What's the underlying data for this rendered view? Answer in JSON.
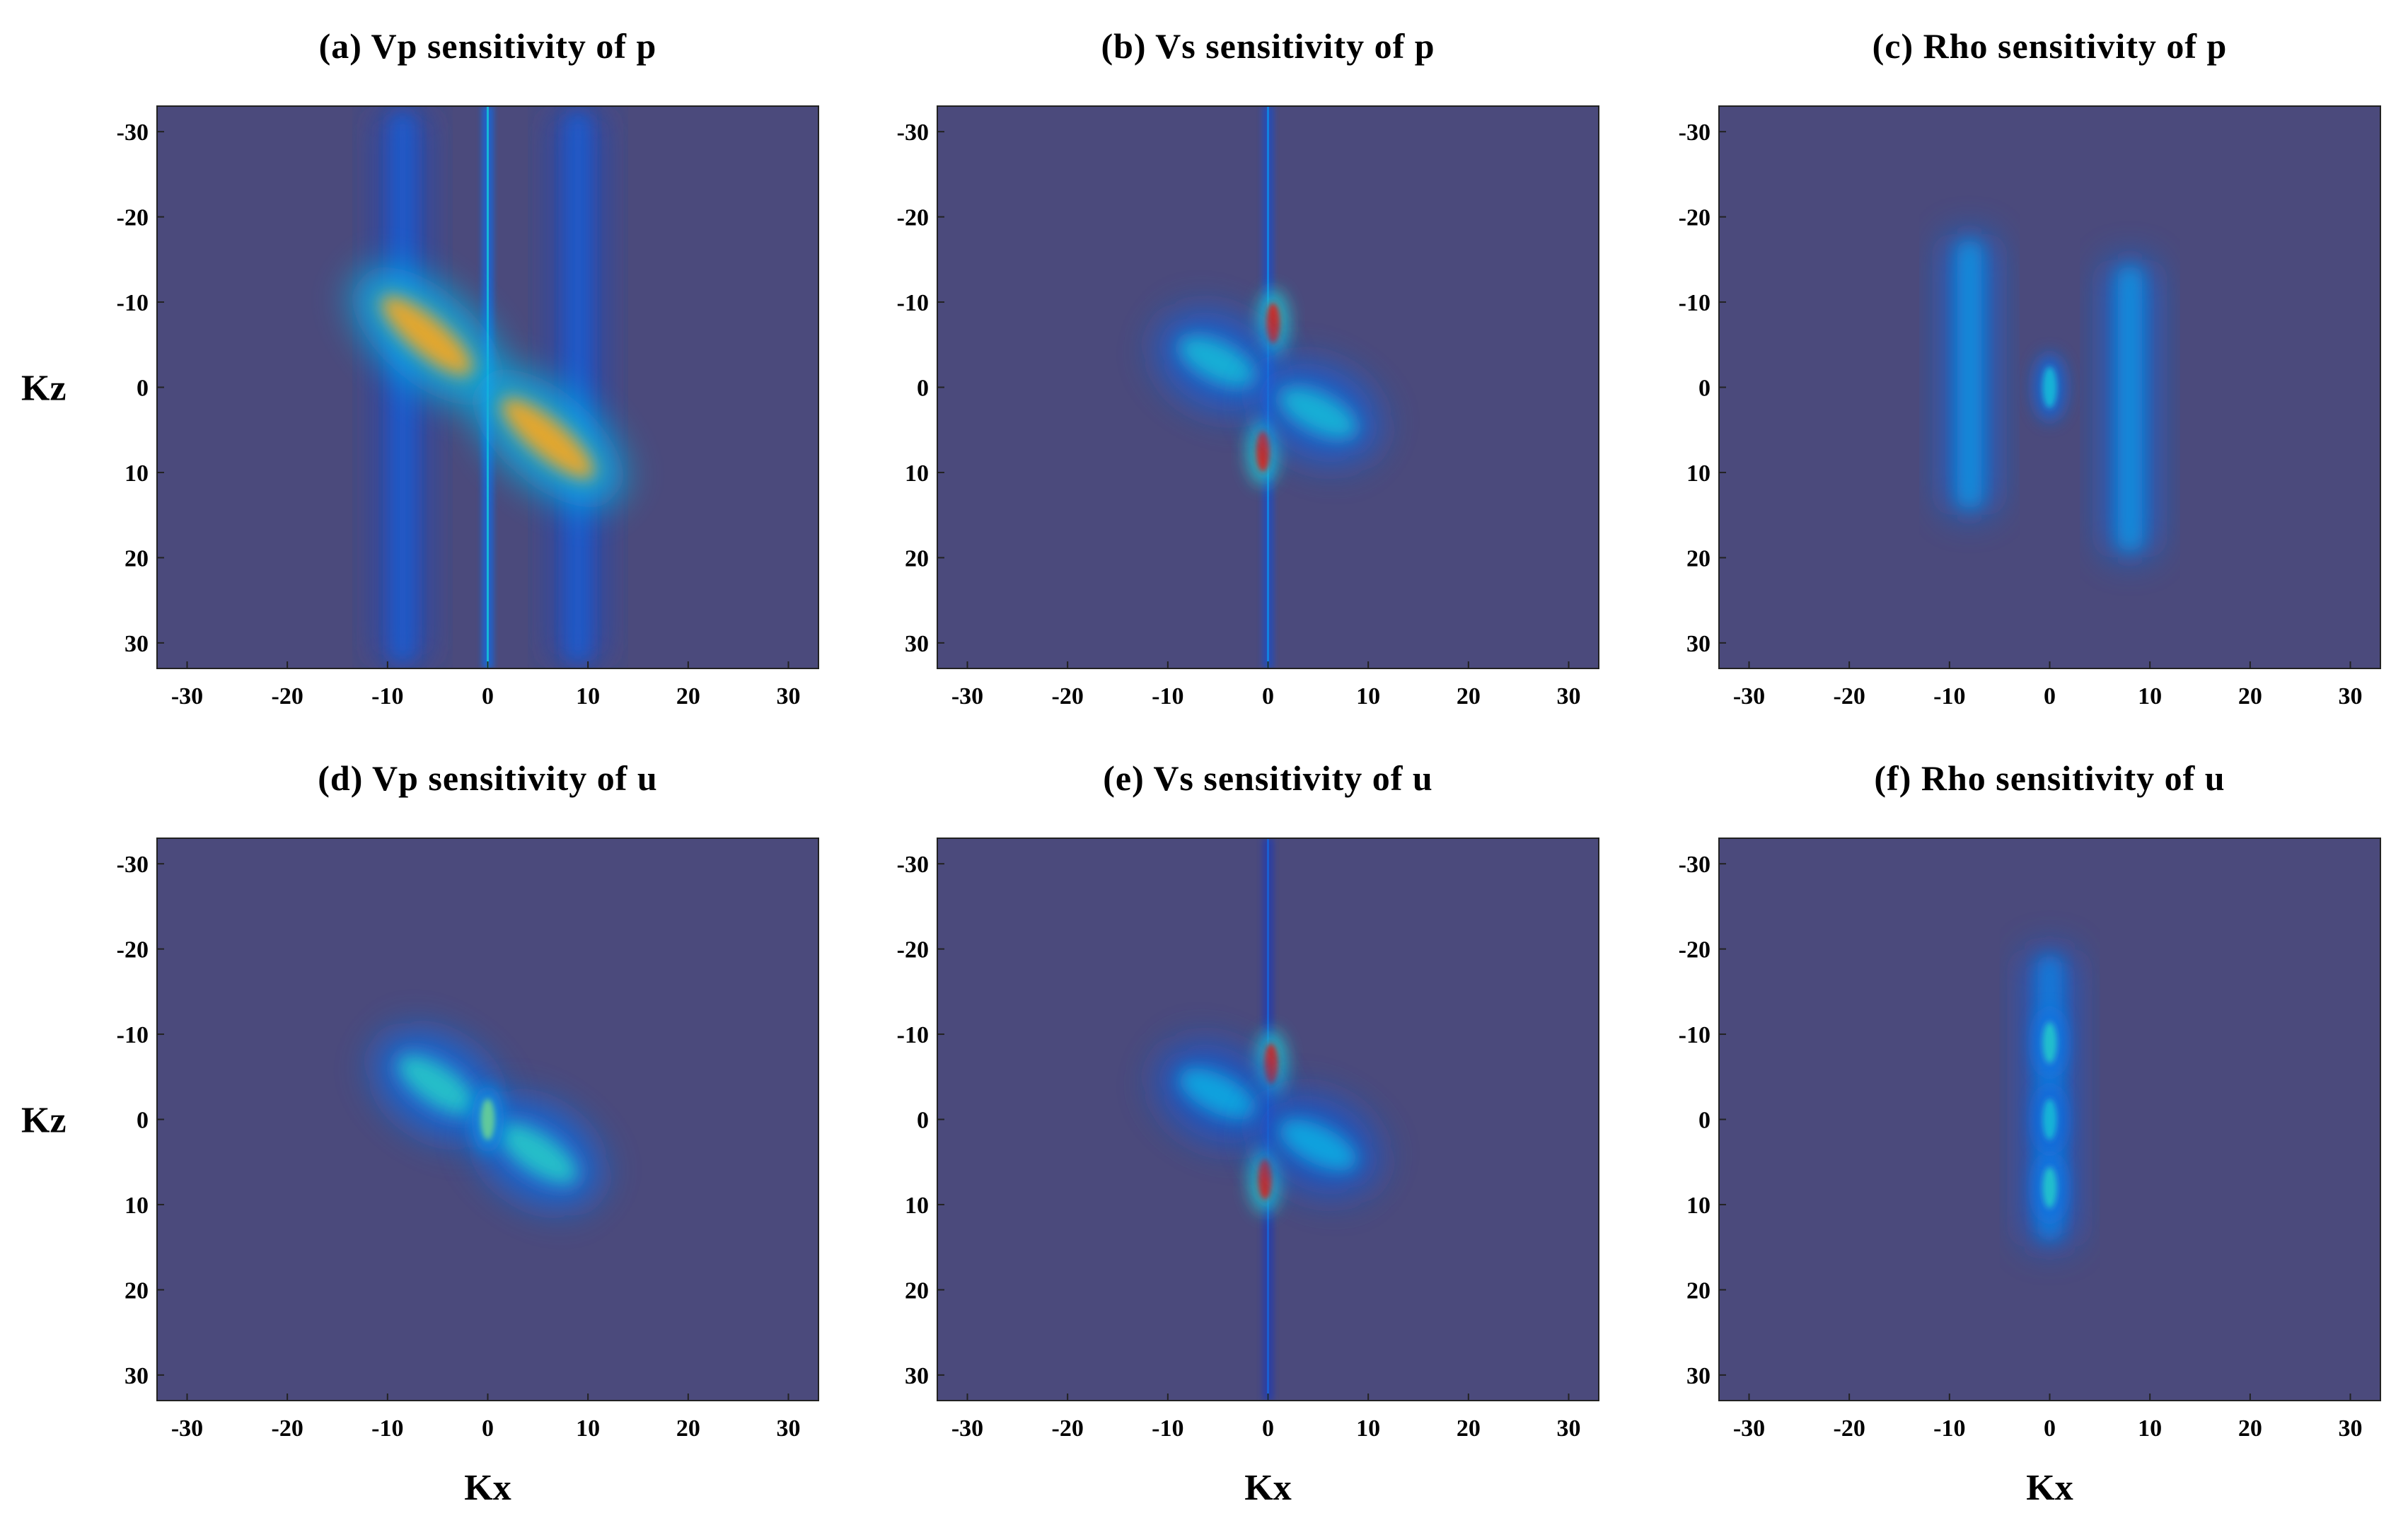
{
  "chart_data": [
    {
      "id": "a",
      "type": "heatmap",
      "title": "(a) Vp sensitivity of p",
      "xlabel": "",
      "ylabel": "Kz",
      "xlim": [
        -33,
        33
      ],
      "ylim": [
        33,
        -33
      ],
      "y_inverted": true,
      "xticks": [
        -30,
        -20,
        -10,
        0,
        10,
        20,
        30
      ],
      "yticks": [
        -30,
        -20,
        -10,
        0,
        10,
        20,
        30
      ],
      "colormap": "parula",
      "background_color": "#4b4a7c",
      "features": [
        {
          "kind": "vertical_line",
          "x": 0,
          "z_range": [
            -33,
            33
          ],
          "intensity": 0.55
        },
        {
          "kind": "vertical_band",
          "x": -8.5,
          "z_range": [
            -33,
            33
          ],
          "intensity": 0.3
        },
        {
          "kind": "vertical_band",
          "x": 9,
          "z_range": [
            -33,
            33
          ],
          "intensity": 0.3
        },
        {
          "kind": "butterfly_lobe",
          "x": -6,
          "z": -6,
          "intensity": 0.92
        },
        {
          "kind": "butterfly_lobe",
          "x": 6,
          "z": 6,
          "intensity": 0.92
        }
      ]
    },
    {
      "id": "b",
      "type": "heatmap",
      "title": "(b) Vs sensitivity of p",
      "xlabel": "",
      "ylabel": "",
      "xlim": [
        -33,
        33
      ],
      "ylim": [
        33,
        -33
      ],
      "y_inverted": true,
      "xticks": [
        -30,
        -20,
        -10,
        0,
        10,
        20,
        30
      ],
      "yticks": [
        -30,
        -20,
        -10,
        0,
        10,
        20,
        30
      ],
      "colormap": "parula",
      "background_color": "#4b4a7c",
      "features": [
        {
          "kind": "vertical_line",
          "x": 0,
          "z_range": [
            -33,
            33
          ],
          "intensity": 0.4
        },
        {
          "kind": "hotspot",
          "x": 0.5,
          "z": -7.5,
          "intensity": 1.0
        },
        {
          "kind": "hotspot",
          "x": -0.5,
          "z": 7.5,
          "intensity": 1.0
        },
        {
          "kind": "butterfly_lobe",
          "x": -5,
          "z": -3,
          "intensity": 0.55
        },
        {
          "kind": "butterfly_lobe",
          "x": 5,
          "z": 3,
          "intensity": 0.55
        }
      ]
    },
    {
      "id": "c",
      "type": "heatmap",
      "title": "(c) Rho sensitivity of p",
      "xlabel": "",
      "ylabel": "",
      "xlim": [
        -33,
        33
      ],
      "ylim": [
        33,
        -33
      ],
      "y_inverted": true,
      "xticks": [
        -30,
        -20,
        -10,
        0,
        10,
        20,
        30
      ],
      "yticks": [
        -30,
        -20,
        -10,
        0,
        10,
        20,
        30
      ],
      "colormap": "parula",
      "background_color": "#4b4a7c",
      "features": [
        {
          "kind": "vertical_band",
          "x": -8,
          "z_range": [
            -18,
            15
          ],
          "intensity": 0.45
        },
        {
          "kind": "vertical_band",
          "x": 8,
          "z_range": [
            -15,
            20
          ],
          "intensity": 0.45
        },
        {
          "kind": "hotspot",
          "x": 0,
          "z": 0,
          "intensity": 0.55
        }
      ]
    },
    {
      "id": "d",
      "type": "heatmap",
      "title": "(d) Vp sensitivity of u",
      "xlabel": "Kx",
      "ylabel": "Kz",
      "xlim": [
        -33,
        33
      ],
      "ylim": [
        33,
        -33
      ],
      "y_inverted": true,
      "xticks": [
        -30,
        -20,
        -10,
        0,
        10,
        20,
        30
      ],
      "yticks": [
        -30,
        -20,
        -10,
        0,
        10,
        20,
        30
      ],
      "colormap": "parula",
      "background_color": "#4b4a7c",
      "features": [
        {
          "kind": "butterfly_lobe",
          "x": -5,
          "z": -4,
          "intensity": 0.62
        },
        {
          "kind": "butterfly_lobe",
          "x": 5,
          "z": 4,
          "intensity": 0.62
        },
        {
          "kind": "hotspot",
          "x": 0,
          "z": 0,
          "intensity": 0.7
        }
      ]
    },
    {
      "id": "e",
      "type": "heatmap",
      "title": "(e) Vs sensitivity of u",
      "xlabel": "Kx",
      "ylabel": "",
      "xlim": [
        -33,
        33
      ],
      "ylim": [
        33,
        -33
      ],
      "y_inverted": true,
      "xticks": [
        -30,
        -20,
        -10,
        0,
        10,
        20,
        30
      ],
      "yticks": [
        -30,
        -20,
        -10,
        0,
        10,
        20,
        30
      ],
      "colormap": "parula",
      "background_color": "#4b4a7c",
      "features": [
        {
          "kind": "vertical_line",
          "x": 0,
          "z_range": [
            -33,
            33
          ],
          "intensity": 0.3
        },
        {
          "kind": "hotspot",
          "x": 0.3,
          "z": -6.5,
          "intensity": 1.0
        },
        {
          "kind": "hotspot",
          "x": -0.3,
          "z": 7,
          "intensity": 1.0
        },
        {
          "kind": "butterfly_lobe",
          "x": -5,
          "z": -3,
          "intensity": 0.5
        },
        {
          "kind": "butterfly_lobe",
          "x": 5,
          "z": 3,
          "intensity": 0.5
        }
      ]
    },
    {
      "id": "f",
      "type": "heatmap",
      "title": "(f) Rho sensitivity of u",
      "xlabel": "Kx",
      "ylabel": "",
      "xlim": [
        -33,
        33
      ],
      "ylim": [
        33,
        -33
      ],
      "y_inverted": true,
      "xticks": [
        -30,
        -20,
        -10,
        0,
        10,
        20,
        30
      ],
      "yticks": [
        -30,
        -20,
        -10,
        0,
        10,
        20,
        30
      ],
      "colormap": "parula",
      "background_color": "#4b4a7c",
      "features": [
        {
          "kind": "vertical_band",
          "x": 0,
          "z_range": [
            -20,
            15
          ],
          "intensity": 0.4
        },
        {
          "kind": "hotspot",
          "x": 0,
          "z": -9,
          "intensity": 0.6
        },
        {
          "kind": "hotspot",
          "x": 0,
          "z": 8,
          "intensity": 0.6
        },
        {
          "kind": "hotspot",
          "x": 0,
          "z": 0,
          "intensity": 0.55
        }
      ]
    }
  ]
}
